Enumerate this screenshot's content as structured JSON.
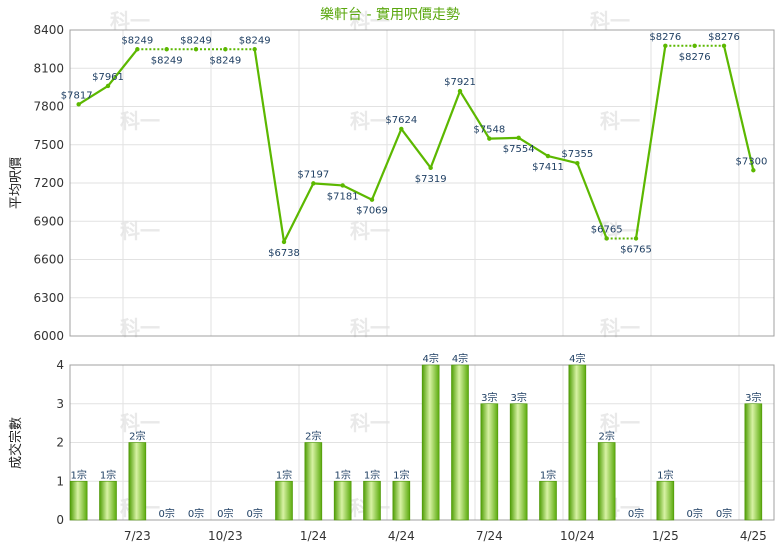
{
  "chart_data": [
    {
      "type": "line",
      "title": "樂軒台 - 實用呎價走勢",
      "ylabel": "平均呎價",
      "ylim": [
        6000,
        8400
      ],
      "yticks": [
        "6000",
        "6300",
        "6600",
        "6900",
        "7200",
        "7500",
        "7800",
        "8100",
        "8400"
      ],
      "x_ticks": [
        "7/23",
        "10/23",
        "1/24",
        "4/24",
        "7/24",
        "10/24",
        "1/25",
        "4/25"
      ],
      "values": [
        7817,
        7961,
        8249,
        8249,
        8249,
        8249,
        8249,
        6738,
        7197,
        7181,
        7069,
        7624,
        7319,
        7921,
        7548,
        7554,
        7411,
        7355,
        6765,
        6765,
        8276,
        8276,
        8276,
        7300
      ],
      "labels": [
        "$7817",
        "$7961",
        "$8249",
        "$8249",
        "$8249",
        "$8249",
        "$8249",
        "$6738",
        "$7197",
        "$7181",
        "$7069",
        "$7624",
        "$7319",
        "$7921",
        "$7548",
        "$7554",
        "$7411",
        "$7355",
        "$6765",
        "$6765",
        "$8276",
        "$8276",
        "$8276",
        "$7300"
      ],
      "dashed_segments": [
        2,
        3,
        4,
        5,
        18,
        20,
        21
      ],
      "color": "#5cb800",
      "grid": true
    },
    {
      "type": "bar",
      "ylabel": "成交宗數",
      "ylim": [
        0,
        4
      ],
      "yticks": [
        "0",
        "1",
        "2",
        "3",
        "4"
      ],
      "x_ticks": [
        "7/23",
        "10/23",
        "1/24",
        "4/24",
        "7/24",
        "10/24",
        "1/25",
        "4/25"
      ],
      "values": [
        1,
        1,
        2,
        0,
        0,
        0,
        0,
        1,
        2,
        1,
        1,
        1,
        4,
        4,
        3,
        3,
        1,
        4,
        2,
        0,
        1,
        0,
        0,
        3
      ],
      "labels": [
        "1宗",
        "1宗",
        "2宗",
        "0宗",
        "0宗",
        "0宗",
        "0宗",
        "1宗",
        "2宗",
        "1宗",
        "1宗",
        "1宗",
        "4宗",
        "4宗",
        "3宗",
        "3宗",
        "1宗",
        "4宗",
        "2宗",
        "0宗",
        "1宗",
        "0宗",
        "0宗",
        "3宗"
      ],
      "color": "#6cc512",
      "grid": true
    }
  ],
  "watermark": "科一"
}
